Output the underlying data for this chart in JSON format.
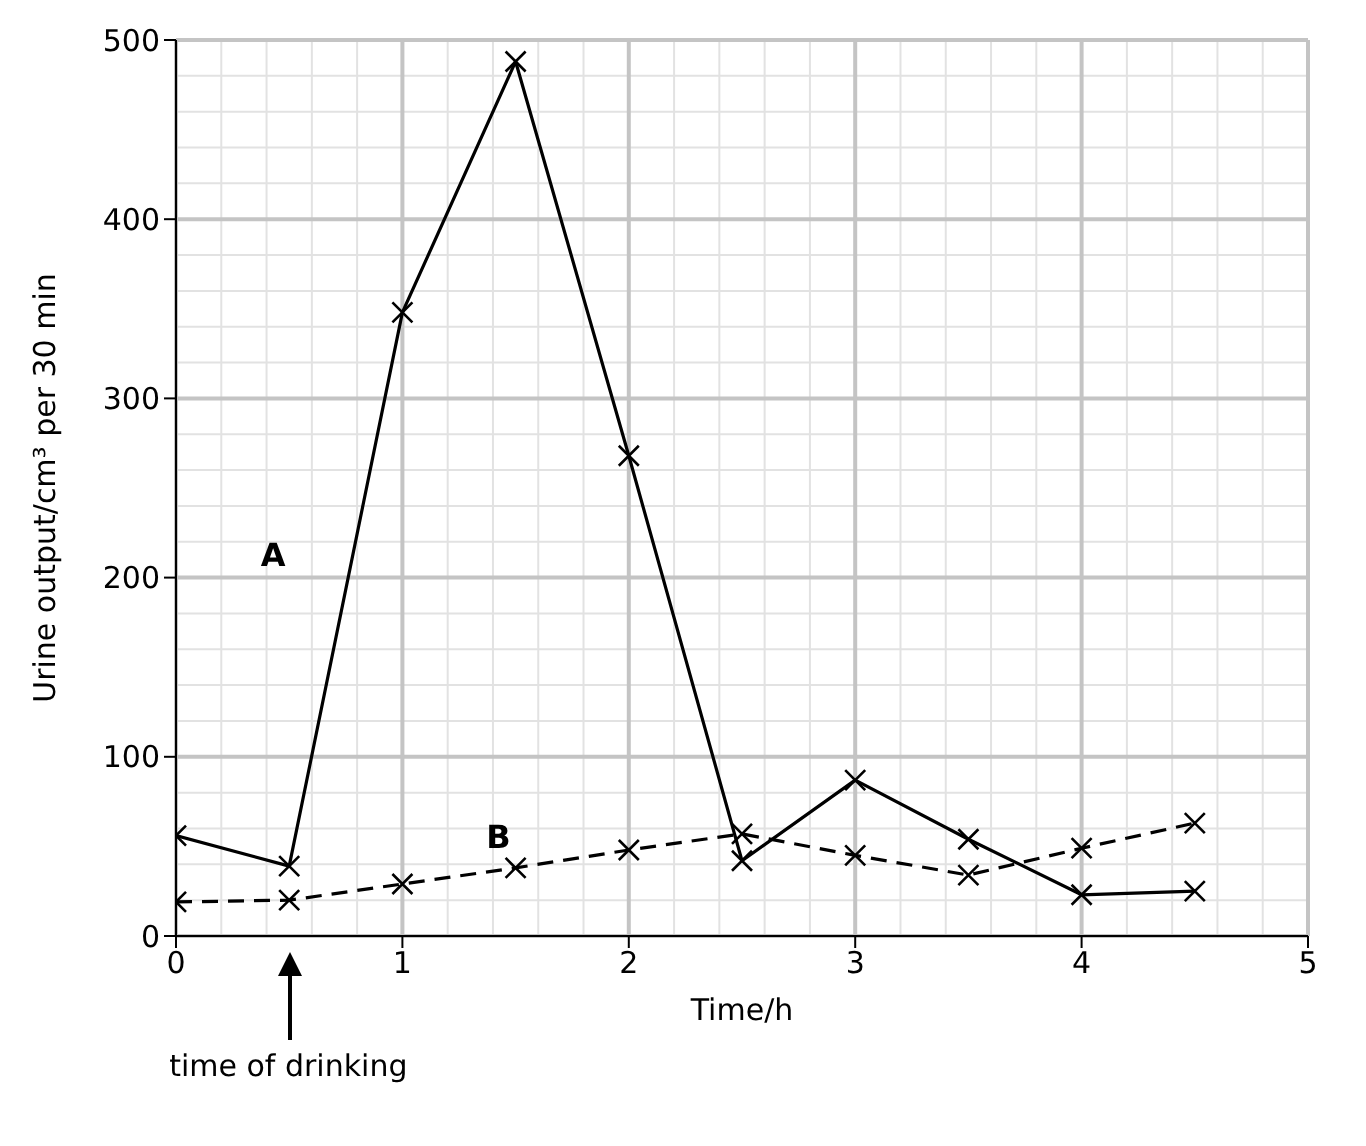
{
  "chart_data": {
    "type": "line",
    "xlabel": "Time/h",
    "ylabel": "Urine output/cm³ per 30 min",
    "x": [
      0,
      0.5,
      1,
      1.5,
      2,
      2.5,
      3,
      3.5,
      4,
      4.5
    ],
    "series": [
      {
        "name": "A",
        "color": "#000000",
        "line_style": "solid",
        "values": [
          56,
          39,
          348,
          488,
          268,
          42,
          87,
          54,
          23,
          25
        ]
      },
      {
        "name": "B",
        "color": "#000000",
        "line_style": "dashed",
        "values": [
          19,
          20,
          29,
          38,
          48,
          57,
          45,
          34,
          49,
          63
        ]
      }
    ],
    "xlim": [
      0,
      5
    ],
    "xticks": [
      0,
      1,
      2,
      3,
      4,
      5
    ],
    "ylim": [
      0,
      500
    ],
    "yticks": [
      0,
      100,
      200,
      300,
      400,
      500
    ],
    "grid": true,
    "legend": false,
    "marker": "cross",
    "annotations": [
      "time of drinking"
    ]
  }
}
